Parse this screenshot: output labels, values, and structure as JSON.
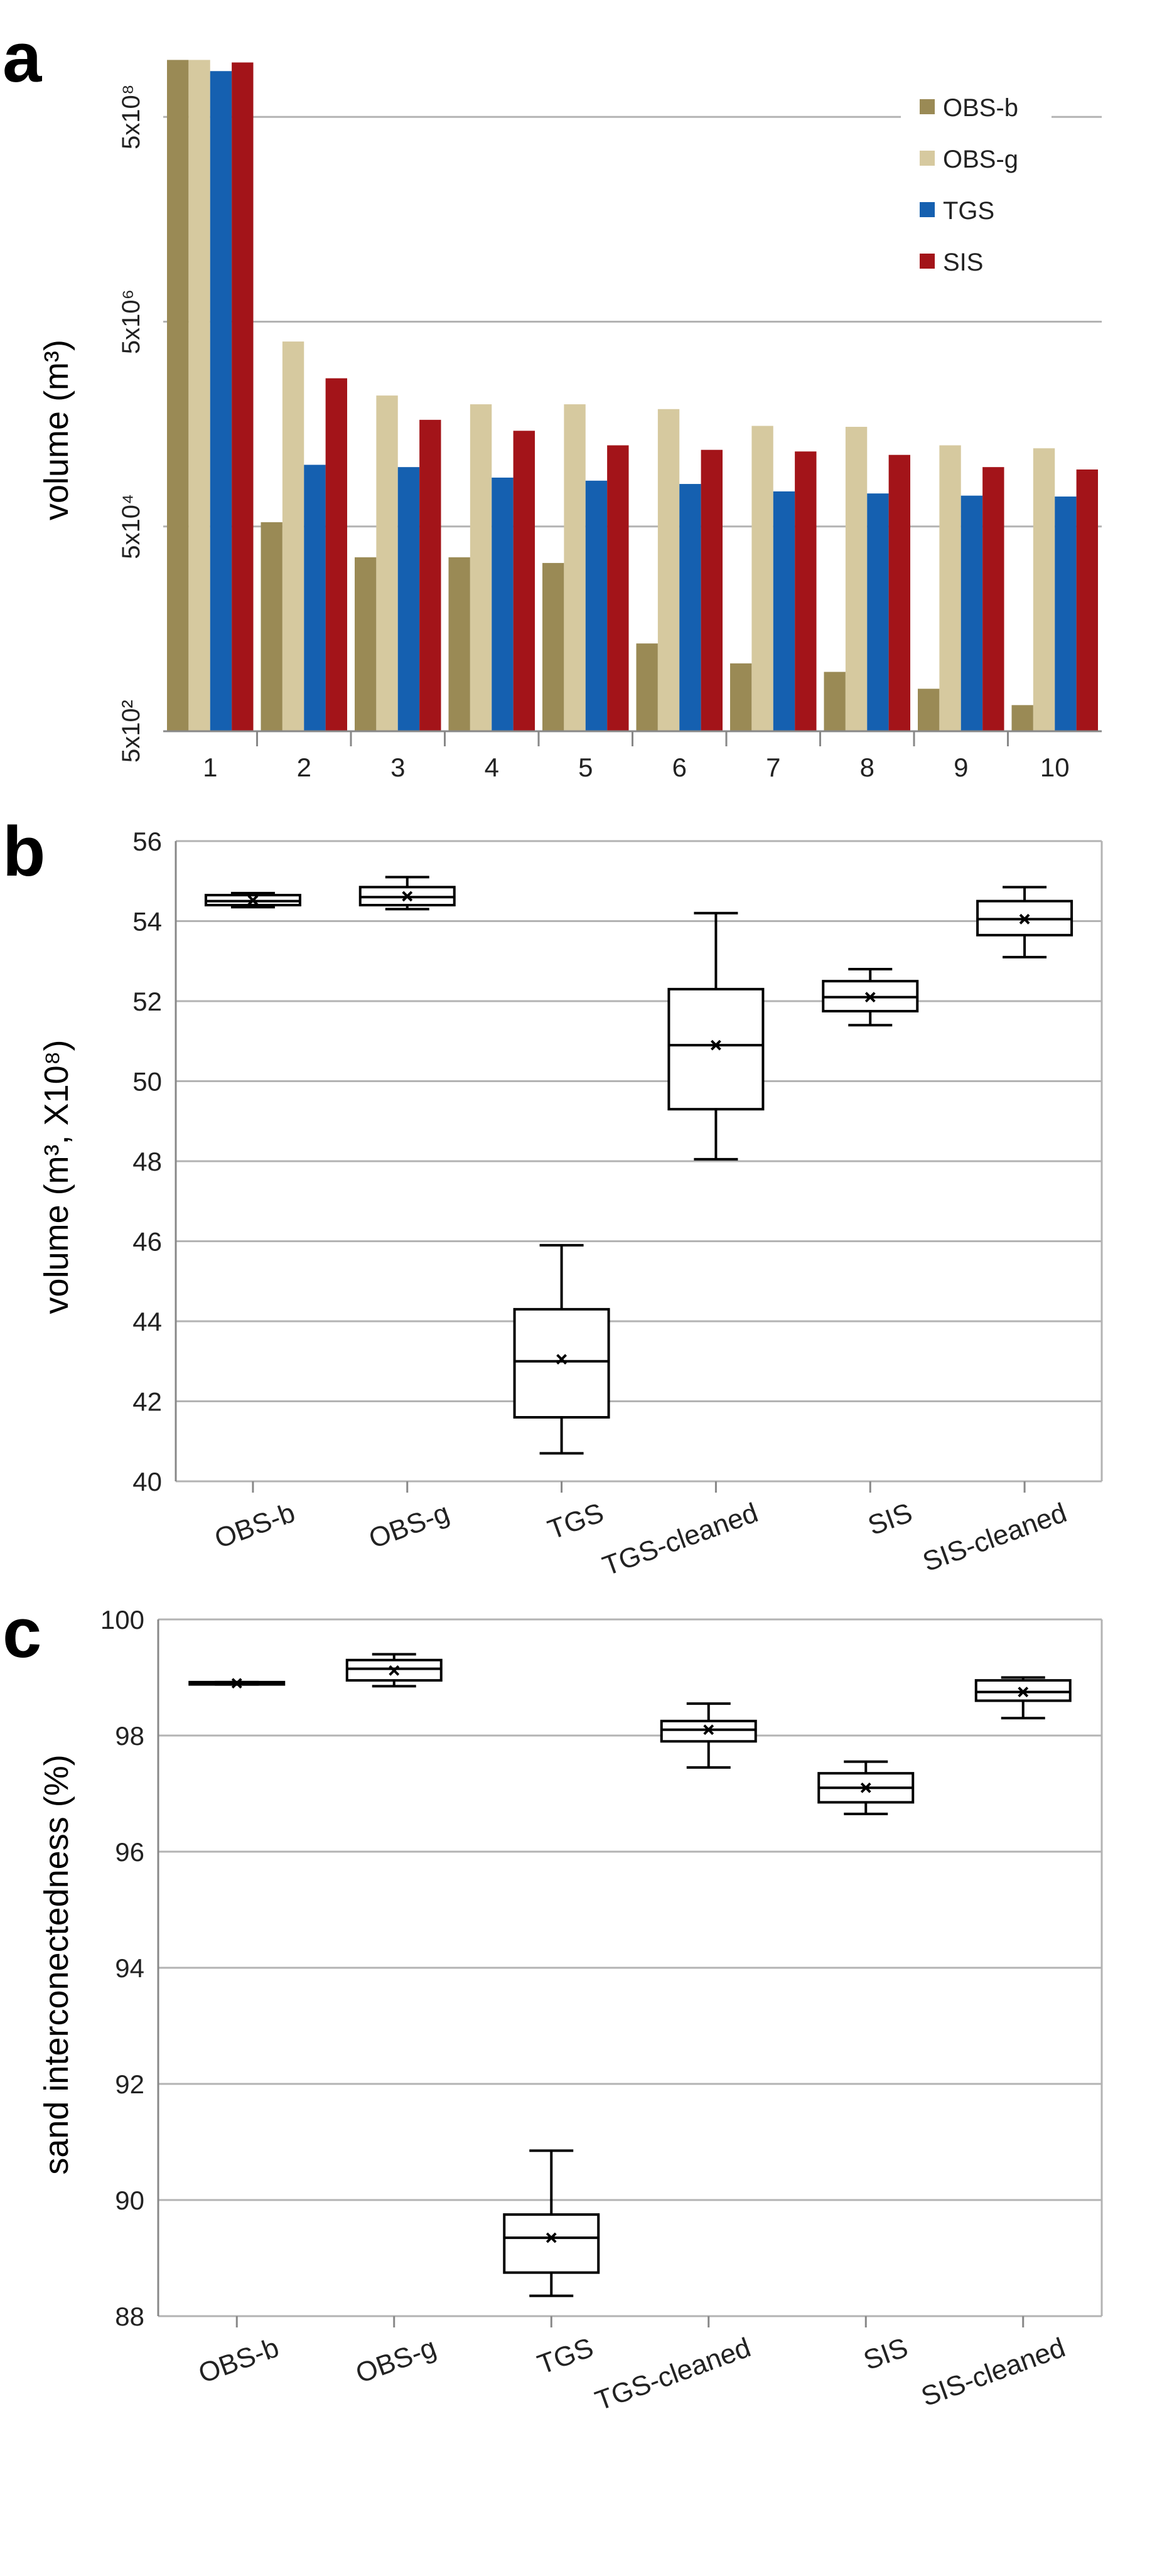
{
  "figure": {
    "panels": [
      {
        "letter": "a"
      },
      {
        "letter": "b"
      },
      {
        "letter": "c"
      }
    ]
  },
  "colors": {
    "obs_b": "#9a8a55",
    "obs_g": "#d6c99f",
    "tgs": "#1560b0",
    "sis": "#a31419",
    "grid": "#b3b3b3",
    "axis": "#888888",
    "text": "#222222"
  },
  "chart_data": [
    {
      "panel": "a",
      "type": "bar",
      "title": "",
      "xlabel": "",
      "ylabel": "volume (m³)",
      "yscale": "log",
      "ylim": [
        500,
        2000000000
      ],
      "yticks": [
        {
          "value": 500,
          "label": "5x10²"
        },
        {
          "value": 50000,
          "label": "5x10⁴"
        },
        {
          "value": 5000000,
          "label": "5x10⁶"
        },
        {
          "value": 500000000,
          "label": "5x10⁸"
        }
      ],
      "legend_position": "top-right",
      "categories": [
        "1",
        "2",
        "3",
        "4",
        "5",
        "6",
        "7",
        "8",
        "9",
        "10"
      ],
      "series": [
        {
          "name": "OBS-b",
          "color": "#9a8a55",
          "values": [
            1800000000,
            55000,
            25000,
            25000,
            22000,
            3600,
            2300,
            1900,
            1300,
            900
          ]
        },
        {
          "name": "OBS-g",
          "color": "#d6c99f",
          "values": [
            1800000000,
            3200000,
            950000,
            780000,
            780000,
            700000,
            480000,
            470000,
            310000,
            290000
          ]
        },
        {
          "name": "TGS",
          "color": "#1560b0",
          "values": [
            1400000000,
            200000,
            190000,
            150000,
            140000,
            130000,
            110000,
            105000,
            100000,
            98000
          ]
        },
        {
          "name": "SIS",
          "color": "#a31419",
          "values": [
            1700000000,
            1400000,
            550000,
            430000,
            310000,
            280000,
            270000,
            250000,
            190000,
            180000
          ]
        }
      ]
    },
    {
      "panel": "b",
      "type": "box",
      "title": "",
      "xlabel": "",
      "ylabel": "volume (m³, X10⁸)",
      "ylim": [
        40,
        56
      ],
      "yticks": [
        40,
        42,
        44,
        46,
        48,
        50,
        52,
        54,
        56
      ],
      "categories": [
        "OBS-b",
        "OBS-g",
        "TGS",
        "TGS-cleaned",
        "SIS",
        "SIS-cleaned"
      ],
      "boxes": [
        {
          "name": "OBS-b",
          "min": 54.35,
          "q1": 54.4,
          "median": 54.5,
          "q3": 54.65,
          "max": 54.7,
          "mean": 54.52
        },
        {
          "name": "OBS-g",
          "min": 54.3,
          "q1": 54.4,
          "median": 54.6,
          "q3": 54.85,
          "max": 55.1,
          "mean": 54.62
        },
        {
          "name": "TGS",
          "min": 40.7,
          "q1": 41.6,
          "median": 43.0,
          "q3": 44.3,
          "max": 45.9,
          "mean": 43.05
        },
        {
          "name": "TGS-cleaned",
          "min": 48.05,
          "q1": 49.3,
          "median": 50.9,
          "q3": 52.3,
          "max": 54.2,
          "mean": 50.9
        },
        {
          "name": "SIS",
          "min": 51.4,
          "q1": 51.75,
          "median": 52.1,
          "q3": 52.5,
          "max": 52.8,
          "mean": 52.1
        },
        {
          "name": "SIS-cleaned",
          "min": 53.1,
          "q1": 53.65,
          "median": 54.05,
          "q3": 54.5,
          "max": 54.85,
          "mean": 54.05
        }
      ]
    },
    {
      "panel": "c",
      "type": "box",
      "title": "",
      "xlabel": "",
      "ylabel": "sand interconectedness (%)",
      "ylim": [
        88,
        100
      ],
      "yticks": [
        88,
        90,
        92,
        94,
        96,
        98,
        100
      ],
      "categories": [
        "OBS-b",
        "OBS-g",
        "TGS",
        "TGS-cleaned",
        "SIS",
        "SIS-cleaned"
      ],
      "boxes": [
        {
          "name": "OBS-b",
          "min": 98.88,
          "q1": 98.88,
          "median": 98.9,
          "q3": 98.92,
          "max": 98.92,
          "mean": 98.9
        },
        {
          "name": "OBS-g",
          "min": 98.85,
          "q1": 98.95,
          "median": 99.15,
          "q3": 99.3,
          "max": 99.4,
          "mean": 99.12
        },
        {
          "name": "TGS",
          "min": 88.35,
          "q1": 88.75,
          "median": 89.35,
          "q3": 89.75,
          "max": 90.85,
          "mean": 89.35
        },
        {
          "name": "TGS-cleaned",
          "min": 97.45,
          "q1": 97.9,
          "median": 98.1,
          "q3": 98.25,
          "max": 98.55,
          "mean": 98.1
        },
        {
          "name": "SIS",
          "min": 96.65,
          "q1": 96.85,
          "median": 97.1,
          "q3": 97.35,
          "max": 97.55,
          "mean": 97.1
        },
        {
          "name": "SIS-cleaned",
          "min": 98.3,
          "q1": 98.6,
          "median": 98.75,
          "q3": 98.95,
          "max": 99.0,
          "mean": 98.75
        }
      ]
    }
  ]
}
